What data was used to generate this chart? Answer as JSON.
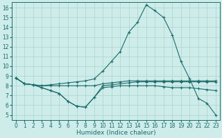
{
  "bg_color": "#ceecea",
  "grid_color": "#aad4ce",
  "line_color": "#1a6b6b",
  "xlim": [
    -0.5,
    23.5
  ],
  "ylim": [
    4.5,
    16.6
  ],
  "xticks": [
    0,
    1,
    2,
    3,
    4,
    5,
    6,
    7,
    8,
    9,
    10,
    11,
    12,
    13,
    14,
    15,
    16,
    17,
    18,
    19,
    20,
    21,
    22,
    23
  ],
  "yticks": [
    5,
    6,
    7,
    8,
    9,
    10,
    11,
    12,
    13,
    14,
    15,
    16
  ],
  "xlabel": "Humidex (Indice chaleur)",
  "xlabel_fontsize": 6.5,
  "tick_fontsize": 5.5,
  "line1_x": [
    0,
    1,
    2,
    3,
    4,
    5,
    6,
    7,
    8,
    9,
    10,
    11,
    12,
    13,
    14,
    15,
    16,
    17,
    18,
    19,
    20,
    21,
    22,
    23
  ],
  "line1_y": [
    8.8,
    8.2,
    8.1,
    8.0,
    8.1,
    8.2,
    8.3,
    8.4,
    8.5,
    8.7,
    9.5,
    10.5,
    11.5,
    13.5,
    14.5,
    16.3,
    15.7,
    15.0,
    13.2,
    10.5,
    8.7,
    6.7,
    6.2,
    5.0
  ],
  "line2_x": [
    0,
    1,
    2,
    3,
    4,
    5,
    6,
    7,
    8,
    9,
    10,
    11,
    12,
    13,
    14,
    15,
    16,
    17,
    18,
    19,
    20,
    21,
    22,
    23
  ],
  "line2_y": [
    8.8,
    8.2,
    8.1,
    8.0,
    8.0,
    8.0,
    8.0,
    8.0,
    8.0,
    8.0,
    8.2,
    8.3,
    8.4,
    8.5,
    8.5,
    8.5,
    8.5,
    8.5,
    8.5,
    8.5,
    8.5,
    8.5,
    8.5,
    8.5
  ],
  "line3_x": [
    0,
    1,
    2,
    3,
    4,
    5,
    6,
    7,
    8,
    9,
    10,
    11,
    12,
    13,
    14,
    15,
    16,
    17,
    18,
    19,
    20,
    21,
    22,
    23
  ],
  "line3_y": [
    8.8,
    8.2,
    8.1,
    7.8,
    7.5,
    7.2,
    6.4,
    5.9,
    5.8,
    6.8,
    8.0,
    8.1,
    8.2,
    8.3,
    8.4,
    8.4,
    8.4,
    8.4,
    8.4,
    8.4,
    8.4,
    8.4,
    8.4,
    8.4
  ],
  "line4_x": [
    0,
    1,
    2,
    3,
    4,
    5,
    6,
    7,
    8,
    9,
    10,
    11,
    12,
    13,
    14,
    15,
    16,
    17,
    18,
    19,
    20,
    21,
    22,
    23
  ],
  "line4_y": [
    8.8,
    8.2,
    8.1,
    7.8,
    7.5,
    7.2,
    6.4,
    5.9,
    5.8,
    6.8,
    7.8,
    7.9,
    8.0,
    8.0,
    8.0,
    8.0,
    8.0,
    7.9,
    7.8,
    7.8,
    7.8,
    7.7,
    7.6,
    7.5
  ]
}
